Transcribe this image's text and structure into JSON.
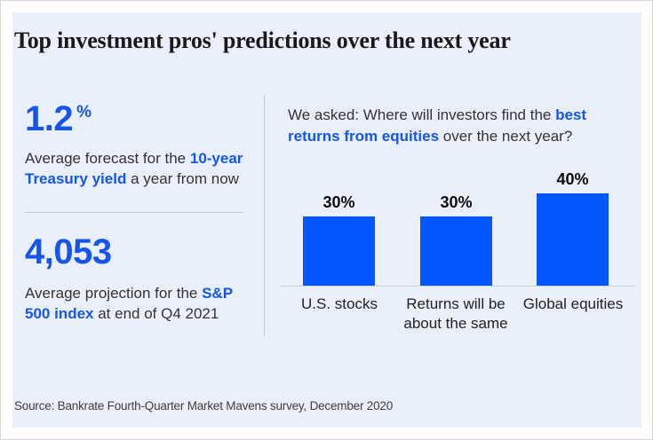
{
  "colors": {
    "card_background": "#e9effb",
    "accent_blue": "#1555ec",
    "bar_blue": "#0256fb"
  },
  "header": {
    "title": "Top investment pros' predictions over the next year"
  },
  "stats": [
    {
      "value": "1.2",
      "unit": "%",
      "desc_prefix": "Average forecast for the ",
      "desc_highlight": "10-year Treasury yield",
      "desc_suffix": " a year from now"
    },
    {
      "value": "4,053",
      "unit": "",
      "desc_prefix": "Average projection for the ",
      "desc_highlight": "S&P 500 index",
      "desc_suffix": " at end of Q4 2021"
    }
  ],
  "question": {
    "prefix": "We asked: Where will investors find the ",
    "highlight": "best returns from equities",
    "suffix": " over the next year?"
  },
  "chart_data": {
    "type": "bar",
    "title": "We asked: Where will investors find the best returns from equities over the next year?",
    "categories": [
      "U.S. stocks",
      "Returns will be about the same",
      "Global equities"
    ],
    "values": [
      30,
      30,
      40
    ],
    "value_labels": [
      "30%",
      "30%",
      "40%"
    ],
    "unit": "%",
    "ylim": [
      0,
      45
    ],
    "grid": false,
    "legend": false,
    "bar_color": "#0256fb",
    "baseline_axis": "x"
  },
  "footer": {
    "source": "Source: Bankrate Fourth-Quarter Market Mavens survey, December 2020"
  }
}
